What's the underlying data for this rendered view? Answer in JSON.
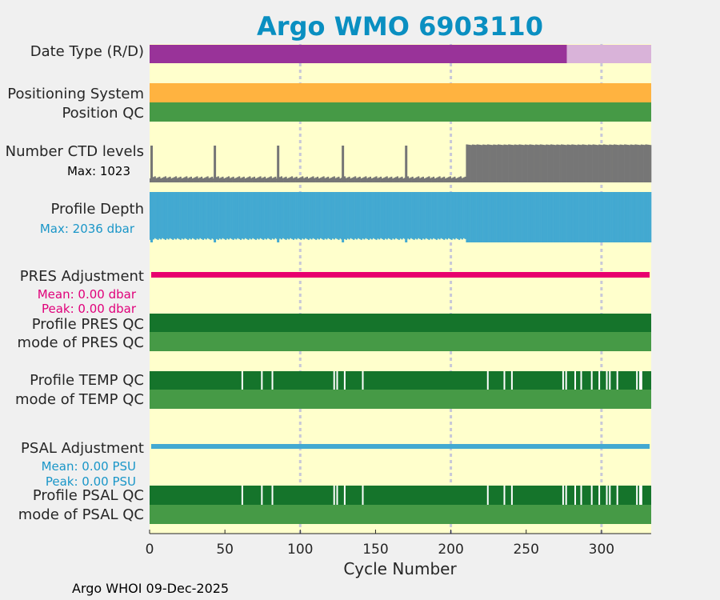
{
  "chart_data": {
    "type": "table",
    "title": "Argo WMO 6903110",
    "xlabel": "Cycle Number",
    "xlim": [
      0,
      333
    ],
    "xticks": [
      0,
      50,
      100,
      150,
      200,
      250,
      300
    ],
    "grid_x": [
      100,
      200,
      300
    ],
    "footer": "Argo WHOI 09-Dec-2025",
    "colors": {
      "title": "#0a8fc1",
      "background": "#ffffcc",
      "figure": "#f0f0f0",
      "purple_dark": "#993399",
      "purple_light": "#d9b3d9",
      "orange": "#ffb340",
      "green_light": "#469a46",
      "green_dark": "#15742b",
      "gray": "#767676",
      "blue": "#43a9d1",
      "magenta": "#e8006e",
      "white": "#ffffff",
      "grid": "#c8c8d8",
      "pink_text": "#e0007a",
      "blue_text": "#1a96c8"
    },
    "rows": [
      {
        "label": "Date Type (R/D)"
      },
      {
        "label": "Positioning System"
      },
      {
        "label": "Position QC"
      },
      {
        "label": "Number CTD levels",
        "note": "Max: 1023"
      },
      {
        "label": "Profile Depth",
        "note": "Max: 2036 dbar"
      },
      {
        "label": "PRES Adjustment",
        "mean": "Mean: 0.00 dbar",
        "peak": "Peak: 0.00 dbar"
      },
      {
        "label": "Profile PRES QC"
      },
      {
        "label": "mode of PRES QC"
      },
      {
        "label": "Profile TEMP QC"
      },
      {
        "label": "mode of TEMP QC"
      },
      {
        "label": "PSAL Adjustment",
        "mean": "Mean: 0.00 PSU",
        "peak": "Peak: 0.00 PSU"
      },
      {
        "label": "Profile PSAL QC"
      },
      {
        "label": "mode of PSAL QC"
      }
    ],
    "date_type": {
      "realtime_until_cycle": 277
    },
    "ctd_levels": {
      "max": 1023,
      "segments": [
        {
          "from": 0,
          "to": 210,
          "level": 0.1
        },
        {
          "from": 210,
          "to": 333,
          "level": 0.95
        }
      ],
      "spikes": [
        0,
        42,
        84,
        127,
        169
      ]
    },
    "profile_depth": {
      "max": 2036,
      "segments": [
        {
          "from": 0,
          "to": 210,
          "level": 0.95
        },
        {
          "from": 210,
          "to": 333,
          "level": 1.0
        }
      ],
      "dips": [
        0,
        42,
        84,
        127,
        169
      ]
    },
    "temp_qc_white_cycles": [
      61,
      74,
      81,
      122,
      124,
      129,
      141,
      224,
      235,
      240,
      274,
      276,
      282,
      286,
      293,
      298,
      303,
      305,
      310,
      323,
      325,
      326
    ],
    "psal_qc_white_cycles": [
      61,
      74,
      81,
      122,
      124,
      129,
      141,
      224,
      235,
      240,
      274,
      276,
      282,
      286,
      293,
      298,
      303,
      305,
      310,
      323,
      325,
      326
    ]
  }
}
